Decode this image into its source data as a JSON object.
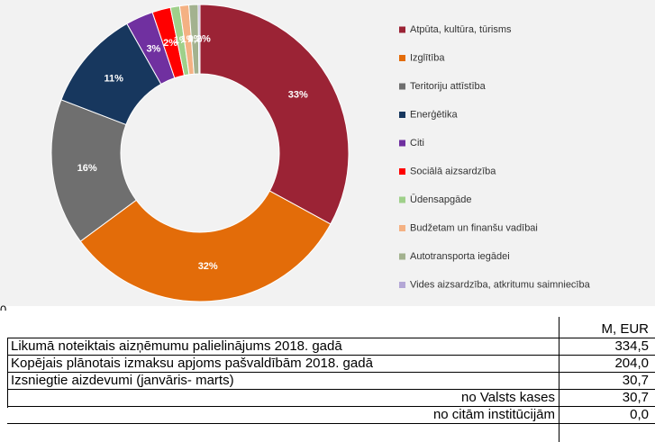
{
  "chart_data": {
    "type": "donut",
    "categories": [
      "Atpūta, kultūra, tūrisms",
      "Izglītība",
      "Teritoriju attīstība",
      "Enerģētika",
      "Citi",
      "Sociālā aizsardzība",
      "Ūdensapgāde",
      "Budžetam un finanšu vadībai",
      "Autotransporta iegādei",
      "Vides aizsardzība, atkritumu saimniecība"
    ],
    "values": [
      33,
      32,
      16,
      11,
      3,
      2,
      1,
      1,
      1,
      0.2
    ],
    "value_labels": [
      "33%",
      "32%",
      "16%",
      "11%",
      "3%",
      "2%",
      "1%",
      "1%",
      "1%",
      "0,2%"
    ],
    "colors": [
      "#9b2335",
      "#e36c09",
      "#6f6f6f",
      "#17375e",
      "#7030a0",
      "#ff0000",
      "#9fd08a",
      "#f4b183",
      "#a3b28f",
      "#b4a7d6"
    ],
    "legend": "right"
  },
  "fragment": "0",
  "table": {
    "header": "M, EUR",
    "rows": [
      [
        "Likumā noteiktais aizņēmumu palielinājums 2018. gadā",
        "334,5"
      ],
      [
        "Kopējais plānotais izmaksu apjoms pašvaldībām 2018. gadā",
        "204,0"
      ],
      [
        "Izsniegtie aizdevumi (janvāris- marts)",
        "30,7"
      ],
      [
        "no Valsts kases",
        "30,7"
      ],
      [
        "no citām institūcijām",
        "0,0"
      ]
    ]
  }
}
